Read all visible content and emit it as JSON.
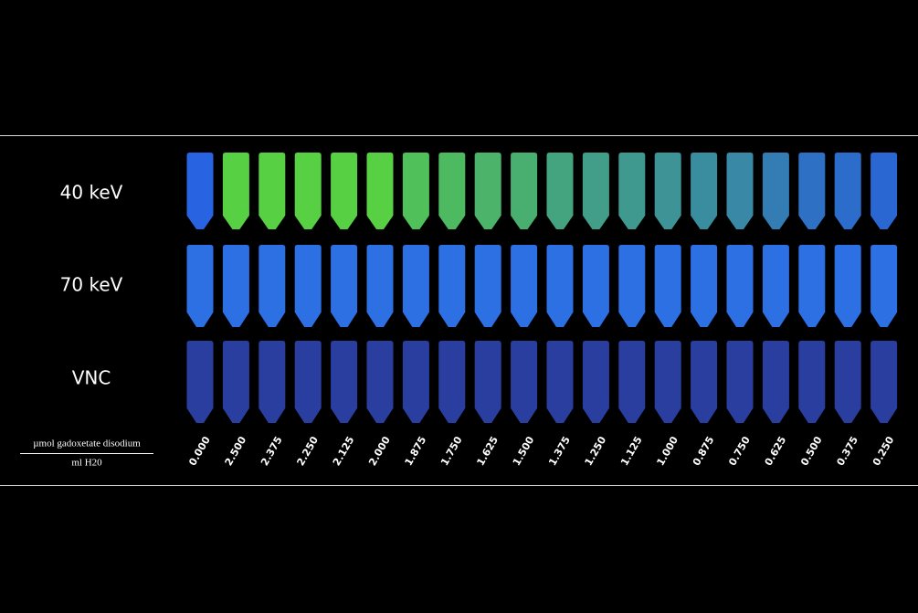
{
  "rows": [
    {
      "label": "40 keV"
    },
    {
      "label": "70 keV"
    },
    {
      "label": "VNC"
    }
  ],
  "unit": {
    "numerator": "µmol gadoxetate disodium",
    "denominator": "ml H20"
  },
  "concentrations": [
    "0.000",
    "2.500",
    "2.375",
    "2.250",
    "2.125",
    "2.000",
    "1.875",
    "1.750",
    "1.625",
    "1.500",
    "1.375",
    "1.250",
    "1.125",
    "1.000",
    "0.875",
    "0.750",
    "0.625",
    "0.500",
    "0.375",
    "0.250"
  ]
}
